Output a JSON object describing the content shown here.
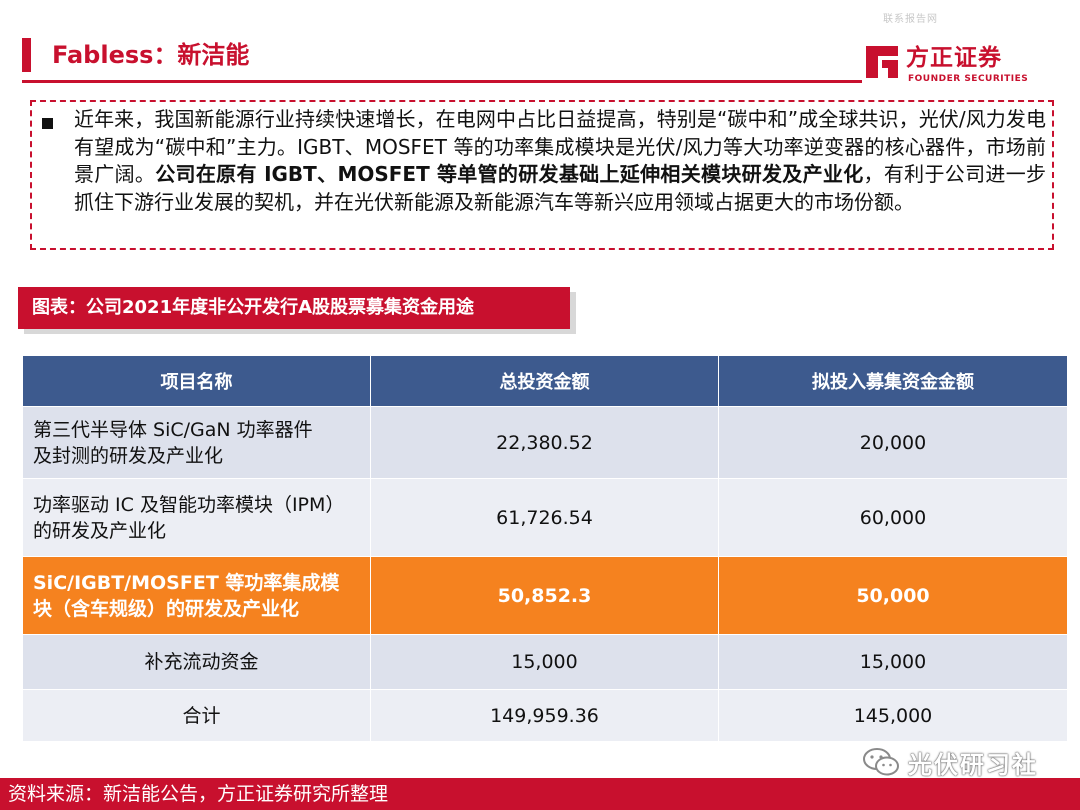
{
  "watermark": "联系报告网",
  "title": "Fabless：新洁能",
  "logo": {
    "cn": "方正证券",
    "en": "FOUNDER SECURITIES",
    "icon": "founder-logo-mark"
  },
  "summary": {
    "part1": "近年来，我国新能源行业持续快速增长，在电网中占比日益提高，特别是“碳中和”成全球共识，光伏/风力发电有望成为“碳中和”主力。IGBT、MOSFET 等的功率集成模块是光伏/风力等大功率逆变器的核心器件，市场前景广阔。",
    "bold": "公司在原有 IGBT、MOSFET 等单管的研发基础上延伸相关模块研发及产业化",
    "part2": "，有利于公司进一步抓住下游行业发展的契机，并在光伏新能源及新能源汽车等新兴应用领域占据更大的市场份额。"
  },
  "caption": "图表：公司2021年度非公开发行A股股票募集资金用途",
  "table": {
    "headers": [
      "项目名称",
      "总投资金额",
      "拟投入募集资金金额"
    ],
    "rows": [
      {
        "name_l1": "第三代半导体 SiC/GaN 功率器件",
        "name_l2": "及封测的研发及产业化",
        "total": "22,380.52",
        "raise": "20,000"
      },
      {
        "name_l1": "功率驱动 IC 及智能功率模块（IPM）",
        "name_l2": "的研发及产业化",
        "total": "61,726.54",
        "raise": "60,000"
      },
      {
        "name_l1": "SiC/IGBT/MOSFET 等功率集成模",
        "name_l2": "块（含车规级）的研发及产业化",
        "total": "50,852.3",
        "raise": "50,000"
      },
      {
        "name": "补充流动资金",
        "total": "15,000",
        "raise": "15,000"
      },
      {
        "name": "合计",
        "total": "149,959.36",
        "raise": "145,000"
      }
    ]
  },
  "footer": "资料来源：新洁能公告，方正证券研究所整理",
  "wechat": {
    "label": "光伏研习社",
    "icon": "wechat-icon"
  },
  "colors": {
    "brand_red": "#c8102e",
    "header_blue": "#3d5a8e",
    "highlight_orange": "#f5821f"
  }
}
